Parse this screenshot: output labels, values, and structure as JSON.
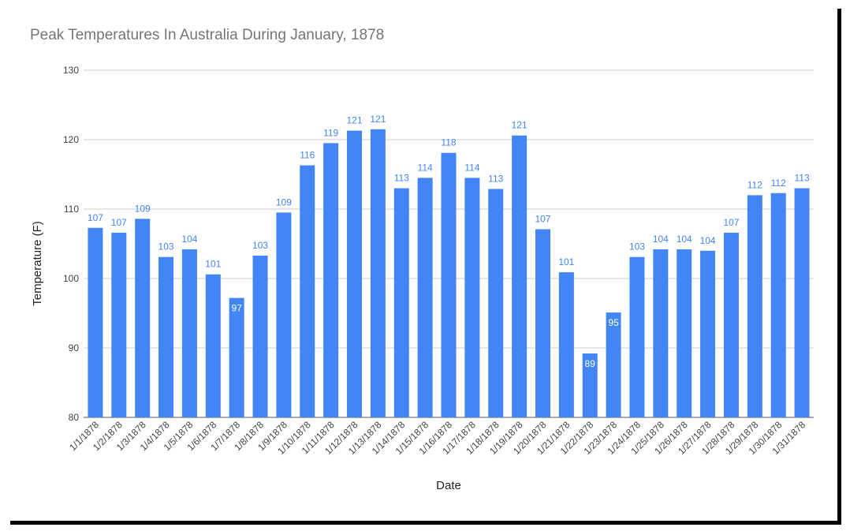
{
  "chart_data": {
    "type": "bar",
    "title": "Peak Temperatures In Australia During January, 1878",
    "xlabel": "Date",
    "ylabel": "Temperature (F)",
    "ylim": [
      80,
      130
    ],
    "yticks": [
      80,
      90,
      100,
      110,
      120,
      130
    ],
    "grid": true,
    "legend": "none",
    "categories": [
      "1/1/1878",
      "1/2/1878",
      "1/3/1878",
      "1/4/1878",
      "1/5/1878",
      "1/6/1878",
      "1/7/1878",
      "1/8/1878",
      "1/9/1878",
      "1/10/1878",
      "1/11/1878",
      "1/12/1878",
      "1/13/1878",
      "1/14/1878",
      "1/15/1878",
      "1/16/1878",
      "1/17/1878",
      "1/18/1878",
      "1/19/1878",
      "1/20/1878",
      "1/21/1878",
      "1/22/1878",
      "1/23/1878",
      "1/24/1878",
      "1/25/1878",
      "1/26/1878",
      "1/27/1878",
      "1/28/1878",
      "1/29/1878",
      "1/30/1878",
      "1/31/1878"
    ],
    "values": [
      107.3,
      106.6,
      108.6,
      103.1,
      104.2,
      100.6,
      97.2,
      103.3,
      109.5,
      116.3,
      119.5,
      121.3,
      121.5,
      113.0,
      114.5,
      118.1,
      114.5,
      112.9,
      120.6,
      107.1,
      100.9,
      89.2,
      95.1,
      103.1,
      104.2,
      104.2,
      104.0,
      106.6,
      112.0,
      112.3,
      113.0
    ],
    "data_labels": [
      "107",
      "107",
      "109",
      "103",
      "104",
      "101",
      "97",
      "103",
      "109",
      "116",
      "119",
      "121",
      "121",
      "113",
      "114",
      "118",
      "114",
      "113",
      "121",
      "107",
      "101",
      "89",
      "95",
      "103",
      "104",
      "104",
      "104",
      "107",
      "112",
      "112",
      "113"
    ],
    "colors": {
      "bar": "#4285f4",
      "label_outside": "#4285f4",
      "label_inside": "#ffffff",
      "grid": "#cccccc",
      "baseline": "#555555",
      "title": "#757575"
    }
  }
}
